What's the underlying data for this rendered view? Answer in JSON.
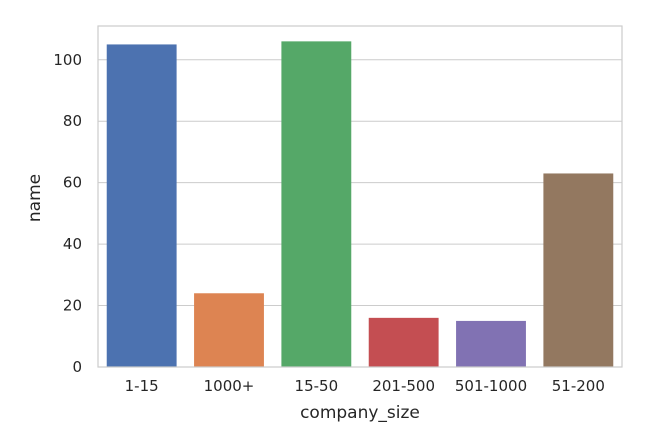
{
  "chart_data": {
    "type": "bar",
    "categories": [
      "1-15",
      "1000+",
      "15-50",
      "201-500",
      "501-1000",
      "51-200"
    ],
    "values": [
      105,
      24,
      106,
      16,
      15,
      63
    ],
    "xlabel": "company_size",
    "ylabel": "name",
    "ylim": [
      0,
      111
    ],
    "yticks": [
      0,
      20,
      40,
      60,
      80,
      100
    ],
    "grid": "horizontal",
    "colors": [
      "#4C72B0",
      "#DD8452",
      "#55A868",
      "#C44E52",
      "#8172B3",
      "#937860"
    ]
  }
}
